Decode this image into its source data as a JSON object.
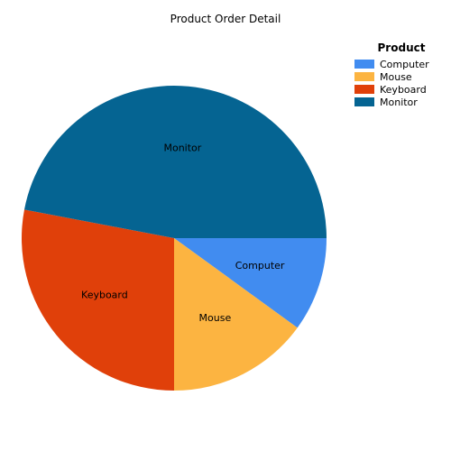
{
  "chart_data": {
    "type": "pie",
    "title": "Product Order Detail",
    "legend": {
      "title": "Product",
      "placement": "top-right"
    },
    "slices": [
      {
        "name": "Computer",
        "value": 10,
        "color": "#418CF0"
      },
      {
        "name": "Mouse",
        "value": 15,
        "color": "#FCB441"
      },
      {
        "name": "Keyboard",
        "value": 28,
        "color": "#E0400A"
      },
      {
        "name": "Monitor",
        "value": 47,
        "color": "#056492"
      }
    ],
    "start_angle_deg": 90,
    "direction": "clockwise"
  }
}
